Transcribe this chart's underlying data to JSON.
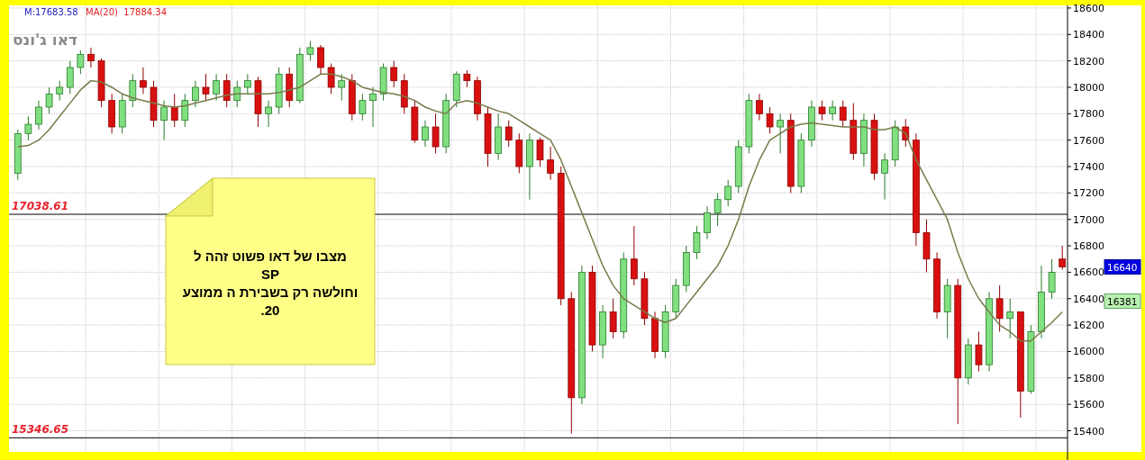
{
  "chart_data": {
    "type": "candlestick",
    "title": "דאו ג'ונס",
    "categories": [
      null,
      null,
      null,
      null,
      null,
      null,
      null,
      null,
      null,
      null,
      null,
      null,
      null,
      null,
      null,
      null,
      null,
      null,
      null,
      null,
      null,
      null,
      null,
      null,
      null,
      null,
      null,
      null,
      null,
      null,
      null,
      null,
      null,
      null,
      null,
      null,
      null,
      null,
      null,
      null,
      null,
      null,
      null,
      null,
      null,
      null,
      null,
      null,
      null,
      null,
      null,
      null,
      null,
      null,
      null,
      null,
      null,
      null,
      null,
      null,
      null,
      null,
      null,
      null,
      null,
      null,
      null,
      null,
      null,
      null,
      null,
      null,
      null,
      null,
      null,
      null,
      null,
      null,
      null,
      null,
      null,
      null,
      null,
      null,
      null,
      null,
      null,
      null,
      null,
      null,
      null,
      null,
      null,
      null,
      null,
      null,
      null,
      null,
      null,
      null,
      null
    ],
    "ohlc": [
      [
        17350,
        17680,
        17300,
        17650
      ],
      [
        17650,
        17780,
        17600,
        17720
      ],
      [
        17720,
        17900,
        17680,
        17850
      ],
      [
        17850,
        18000,
        17800,
        17950
      ],
      [
        17950,
        18050,
        17900,
        18000
      ],
      [
        18000,
        18200,
        17950,
        18150
      ],
      [
        18150,
        18280,
        18100,
        18250
      ],
      [
        18250,
        18300,
        18150,
        18200
      ],
      [
        18200,
        18220,
        17850,
        17900
      ],
      [
        17900,
        17950,
        17650,
        17700
      ],
      [
        17700,
        17950,
        17650,
        17900
      ],
      [
        17900,
        18100,
        17850,
        18050
      ],
      [
        18050,
        18150,
        17950,
        18000
      ],
      [
        18000,
        18050,
        17700,
        17750
      ],
      [
        17750,
        17900,
        17600,
        17850
      ],
      [
        17850,
        17950,
        17700,
        17750
      ],
      [
        17750,
        17950,
        17700,
        17900
      ],
      [
        17900,
        18050,
        17850,
        18000
      ],
      [
        18000,
        18100,
        17900,
        17950
      ],
      [
        17950,
        18100,
        17900,
        18050
      ],
      [
        18050,
        18100,
        17850,
        17900
      ],
      [
        17900,
        18050,
        17850,
        18000
      ],
      [
        18000,
        18100,
        17950,
        18050
      ],
      [
        18050,
        18080,
        17700,
        17800
      ],
      [
        17800,
        17900,
        17700,
        17850
      ],
      [
        17850,
        18150,
        17800,
        18100
      ],
      [
        18100,
        18150,
        17850,
        17900
      ],
      [
        17900,
        18300,
        17880,
        18250
      ],
      [
        18250,
        18350,
        18200,
        18300
      ],
      [
        18300,
        18320,
        18100,
        18150
      ],
      [
        18150,
        18180,
        17950,
        18000
      ],
      [
        18000,
        18100,
        17900,
        18050
      ],
      [
        18050,
        18100,
        17750,
        17800
      ],
      [
        17800,
        17950,
        17750,
        17900
      ],
      [
        17900,
        18000,
        17700,
        17950
      ],
      [
        17950,
        18180,
        17900,
        18150
      ],
      [
        18150,
        18200,
        18000,
        18050
      ],
      [
        18050,
        18100,
        17800,
        17850
      ],
      [
        17850,
        17900,
        17580,
        17600
      ],
      [
        17600,
        17750,
        17550,
        17700
      ],
      [
        17700,
        17800,
        17500,
        17550
      ],
      [
        17550,
        17950,
        17500,
        17900
      ],
      [
        17900,
        18120,
        17850,
        18100
      ],
      [
        18100,
        18130,
        18000,
        18050
      ],
      [
        18050,
        18080,
        17750,
        17800
      ],
      [
        17800,
        17850,
        17400,
        17500
      ],
      [
        17500,
        17800,
        17450,
        17700
      ],
      [
        17700,
        17750,
        17550,
        17600
      ],
      [
        17600,
        17650,
        17350,
        17400
      ],
      [
        17400,
        17650,
        17150,
        17600
      ],
      [
        17600,
        17620,
        17400,
        17450
      ],
      [
        17450,
        17550,
        17300,
        17350
      ],
      [
        17350,
        17400,
        16350,
        16400
      ],
      [
        16400,
        16450,
        15380,
        15650
      ],
      [
        15650,
        16650,
        15600,
        16600
      ],
      [
        16600,
        16650,
        16000,
        16050
      ],
      [
        16050,
        16350,
        15950,
        16300
      ],
      [
        16300,
        16400,
        16100,
        16150
      ],
      [
        16150,
        16750,
        16100,
        16700
      ],
      [
        16700,
        16950,
        16500,
        16550
      ],
      [
        16550,
        16600,
        16200,
        16250
      ],
      [
        16250,
        16300,
        15950,
        16000
      ],
      [
        16000,
        16350,
        15950,
        16300
      ],
      [
        16300,
        16550,
        16250,
        16500
      ],
      [
        16500,
        16800,
        16450,
        16750
      ],
      [
        16750,
        16950,
        16700,
        16900
      ],
      [
        16900,
        17100,
        16850,
        17050
      ],
      [
        17050,
        17200,
        16950,
        17150
      ],
      [
        17150,
        17300,
        17100,
        17250
      ],
      [
        17250,
        17600,
        17200,
        17550
      ],
      [
        17550,
        17950,
        17500,
        17900
      ],
      [
        17900,
        17950,
        17750,
        17800
      ],
      [
        17800,
        17850,
        17650,
        17700
      ],
      [
        17700,
        17800,
        17500,
        17750
      ],
      [
        17750,
        17800,
        17200,
        17250
      ],
      [
        17250,
        17650,
        17200,
        17600
      ],
      [
        17600,
        17900,
        17550,
        17850
      ],
      [
        17850,
        17900,
        17750,
        17800
      ],
      [
        17800,
        17900,
        17750,
        17850
      ],
      [
        17850,
        17900,
        17700,
        17750
      ],
      [
        17750,
        17880,
        17450,
        17500
      ],
      [
        17500,
        17800,
        17400,
        17750
      ],
      [
        17750,
        17800,
        17300,
        17350
      ],
      [
        17350,
        17500,
        17150,
        17450
      ],
      [
        17450,
        17750,
        17400,
        17700
      ],
      [
        17700,
        17760,
        17550,
        17600
      ],
      [
        17600,
        17650,
        16800,
        16900
      ],
      [
        16900,
        17000,
        16600,
        16700
      ],
      [
        16700,
        16750,
        16250,
        16300
      ],
      [
        16300,
        16550,
        16100,
        16500
      ],
      [
        16500,
        16550,
        15450,
        15800
      ],
      [
        15800,
        16100,
        15750,
        16050
      ],
      [
        16050,
        16150,
        15850,
        15900
      ],
      [
        15900,
        16450,
        15850,
        16400
      ],
      [
        16400,
        16500,
        16150,
        16250
      ],
      [
        16250,
        16400,
        16100,
        16300
      ],
      [
        16300,
        16300,
        15500,
        15700
      ],
      [
        15700,
        16200,
        15680,
        16150
      ],
      [
        16150,
        16650,
        16100,
        16450
      ],
      [
        16450,
        16700,
        16400,
        16600
      ],
      [
        16700,
        16800,
        16620,
        16640
      ]
    ],
    "series": [
      {
        "type": "line",
        "color": "#7a7a4a",
        "values": [
          17550,
          17560,
          17600,
          17680,
          17780,
          17880,
          17980,
          18050,
          18040,
          18000,
          17950,
          17920,
          17900,
          17880,
          17860,
          17850,
          17860,
          17880,
          17900,
          17920,
          17940,
          17950,
          17950,
          17950,
          17950,
          17960,
          17980,
          18000,
          18050,
          18100,
          18100,
          18080,
          18050,
          18000,
          17980,
          17960,
          17950,
          17930,
          17900,
          17850,
          17820,
          17800,
          17880,
          17900,
          17880,
          17850,
          17820,
          17800,
          17750,
          17700,
          17650,
          17600,
          17450,
          17250,
          17050,
          16850,
          16650,
          16500,
          16400,
          16350,
          16300,
          16250,
          16220,
          16250,
          16350,
          16450,
          16550,
          16650,
          16800,
          17000,
          17250,
          17450,
          17600,
          17650,
          17700,
          17720,
          17730,
          17720,
          17710,
          17700,
          17700,
          17700,
          17680,
          17680,
          17700,
          17650,
          17450,
          17300,
          17150,
          17000,
          16750,
          16550,
          16400,
          16300,
          16200,
          16150,
          16080,
          16080,
          16150,
          16220,
          16300
        ]
      }
    ],
    "ylim": [
      15240,
      18620
    ],
    "yticks": [
      15400,
      15600,
      15800,
      16000,
      16200,
      16400,
      16600,
      16800,
      17000,
      17200,
      17400,
      17600,
      17800,
      18000,
      18200,
      18400,
      18600
    ],
    "grid": true,
    "ref_lines": [
      {
        "axis": "y",
        "value": 17038.61,
        "label": "17038.61"
      },
      {
        "axis": "y",
        "value": 15346.65,
        "label": "15346.65"
      }
    ],
    "annotations": [
      "M:17683.58",
      "MA(20)  17884.34",
      "16640",
      "16381",
      "מצבו של  דאו  פשוט  זהה  ל\nSP\nוחולשה רק  בשבירת  ה ממוצע\n20."
    ]
  }
}
